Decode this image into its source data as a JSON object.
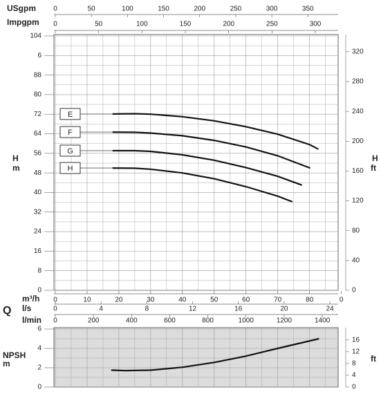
{
  "chart_data": [
    {
      "type": "line",
      "q_label": "Q",
      "ylabel": {
        "symbol": "H",
        "unit": "m"
      },
      "y2label": {
        "symbol": "H",
        "unit": "ft"
      },
      "xlabel": "m³/h",
      "xlim": [
        0,
        89
      ],
      "xticks": [
        0,
        10,
        20,
        30,
        40,
        50,
        60,
        70,
        80,
        {
          "value": 90,
          "label": "0"
        }
      ],
      "ylim": [
        0,
        104
      ],
      "yticks": [
        0,
        8,
        16,
        24,
        32,
        40,
        48,
        56,
        64,
        72,
        80,
        88,
        {
          "value": 96,
          "label": "6"
        },
        104
      ],
      "y2lim": [
        0,
        341.2
      ],
      "y2ticks": [
        0,
        40,
        80,
        120,
        160,
        200,
        240,
        280,
        320
      ],
      "grid": true,
      "secondary_x_axes": [
        {
          "label": "USgpm",
          "xlim": [
            0,
            391.9
          ],
          "xticks": [
            0,
            50,
            100,
            150,
            200,
            250,
            300,
            350
          ],
          "position": "top"
        },
        {
          "label": "Impgpm",
          "xlim": [
            0,
            326.3
          ],
          "xticks": [
            0,
            50,
            100,
            150,
            200,
            250,
            300
          ],
          "position": "top"
        },
        {
          "label": "l/s",
          "xlim": [
            0,
            24.72
          ],
          "xticks": [
            0,
            4,
            8,
            12,
            16,
            20,
            24
          ],
          "position": "bottom"
        },
        {
          "label": "l/min",
          "xlim": [
            0,
            1483
          ],
          "xticks": [
            0,
            200,
            400,
            600,
            800,
            1000,
            1200,
            1400
          ],
          "position": "bottom"
        }
      ],
      "series": [
        {
          "name": "E",
          "color": "#111111",
          "x": [
            18,
            25,
            30,
            40,
            50,
            60,
            70,
            80,
            82.8
          ],
          "values": [
            72.1,
            72.2,
            72.0,
            71.0,
            69.3,
            66.9,
            63.8,
            59.6,
            57.7
          ]
        },
        {
          "name": "F",
          "color": "#111111",
          "x": [
            18,
            25,
            30,
            40,
            50,
            60,
            70,
            80.2
          ],
          "values": [
            64.7,
            64.6,
            64.3,
            63.2,
            61.3,
            58.6,
            55.0,
            50.0
          ]
        },
        {
          "name": "G",
          "color": "#111111",
          "x": [
            18,
            25,
            30,
            40,
            50,
            60,
            70,
            77.6
          ],
          "values": [
            57.1,
            57.1,
            56.8,
            55.4,
            53.2,
            50.2,
            46.6,
            43.0
          ]
        },
        {
          "name": "H",
          "color": "#111111",
          "x": [
            18,
            25,
            30,
            40,
            50,
            60,
            70,
            74.6
          ],
          "values": [
            50.0,
            49.9,
            49.5,
            48.0,
            45.6,
            42.4,
            38.5,
            36.2
          ]
        }
      ]
    },
    {
      "type": "line",
      "ylabel": {
        "symbol": "NPSH",
        "unit": "m"
      },
      "y2label": "ft",
      "xlim": [
        0,
        89
      ],
      "ylim": [
        0,
        6
      ],
      "yticks": [
        0,
        2,
        4,
        6
      ],
      "y2lim": [
        0,
        19.7
      ],
      "y2ticks": [
        0,
        4,
        8,
        12,
        16
      ],
      "grid": true,
      "background": "#dcdcdc",
      "series": [
        {
          "color": "#111111",
          "x": [
            17.6,
            22,
            30,
            40,
            50,
            60,
            70,
            83
          ],
          "values": [
            1.75,
            1.7,
            1.75,
            2.05,
            2.55,
            3.2,
            4.0,
            5.0
          ]
        }
      ]
    }
  ]
}
